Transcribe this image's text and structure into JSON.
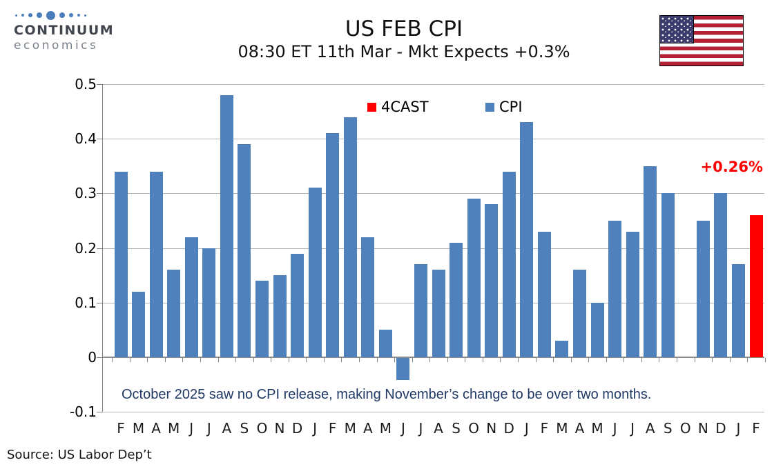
{
  "header": {
    "logo": {
      "line1": "CONTINUUM",
      "line2": "economics",
      "dot_color": "#4a7ebb"
    },
    "title": "US FEB CPI",
    "subtitle": "08:30 ET 11th Mar - Mkt Expects +0.3%",
    "flag_icon": "us-flag-icon"
  },
  "chart_data": {
    "type": "bar",
    "title": "US FEB CPI",
    "subtitle": "08:30 ET 11th Mar - Mkt Expects +0.3%",
    "categories": [
      "F",
      "M",
      "A",
      "M",
      "J",
      "J",
      "A",
      "S",
      "O",
      "N",
      "D",
      "J",
      "F",
      "M",
      "A",
      "M",
      "J",
      "J",
      "A",
      "S",
      "O",
      "N",
      "D",
      "J",
      "F",
      "M",
      "A",
      "M",
      "J",
      "J",
      "A",
      "S",
      "O",
      "N",
      "D",
      "J",
      "F"
    ],
    "series": [
      {
        "name": "4CAST",
        "color": "#ff0000",
        "values": [
          null,
          null,
          null,
          null,
          null,
          null,
          null,
          null,
          null,
          null,
          null,
          null,
          null,
          null,
          null,
          null,
          null,
          null,
          null,
          null,
          null,
          null,
          null,
          null,
          null,
          null,
          null,
          null,
          null,
          null,
          null,
          null,
          null,
          null,
          null,
          null,
          0.26
        ]
      },
      {
        "name": "CPI",
        "color": "#4f81bd",
        "values": [
          0.34,
          0.12,
          0.34,
          0.16,
          0.22,
          0.2,
          0.48,
          0.39,
          0.14,
          0.15,
          0.19,
          0.31,
          0.41,
          0.44,
          0.22,
          0.05,
          -0.04,
          0.17,
          0.16,
          0.21,
          0.29,
          0.28,
          0.34,
          0.43,
          0.23,
          0.03,
          0.16,
          0.1,
          0.25,
          0.23,
          0.35,
          0.3,
          null,
          0.25,
          0.3,
          0.17,
          null
        ]
      }
    ],
    "ylim": [
      -0.1,
      0.5
    ],
    "yticks": [
      0.5,
      0.4,
      0.3,
      0.2,
      0.1,
      0,
      -0.1
    ],
    "grid": true,
    "legend_position": "top-center",
    "forecast_label": "+0.26%",
    "annotation": "October 2025 saw no CPI release, making November’s change to be over two months."
  },
  "footer": {
    "source": "Source: US Labor Dep’t"
  }
}
